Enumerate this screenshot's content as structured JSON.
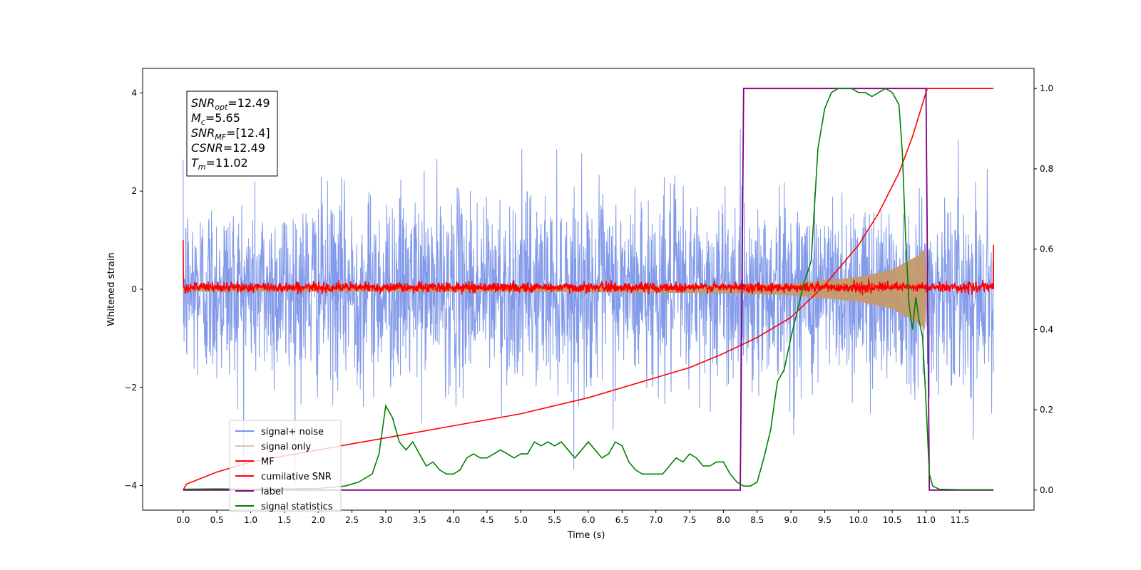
{
  "chart_data": {
    "type": "line",
    "title": "",
    "xlabel": "Time (s)",
    "ylabel": "Whitened strain",
    "xlim": [
      -0.6,
      12.6
    ],
    "ylim": [
      -4.5,
      4.5
    ],
    "y2lim": [
      -0.05,
      1.05
    ],
    "x_ticks": [
      0.0,
      0.5,
      1.0,
      1.5,
      2.0,
      2.5,
      3.0,
      3.5,
      4.0,
      4.5,
      5.0,
      5.5,
      6.0,
      6.5,
      7.0,
      7.5,
      8.0,
      8.5,
      9.0,
      9.5,
      10.0,
      10.5,
      11.0,
      11.5
    ],
    "x_tick_labels": [
      "0.0",
      "0.5",
      "1.0",
      "1.5",
      "2.0",
      "2.5",
      "3.0",
      "3.5",
      "4.0",
      "4.5",
      "5.0",
      "5.5",
      "6.0",
      "6.5",
      "7.0",
      "7.5",
      "8.0",
      "8.5",
      "9.0",
      "9.5",
      "10.0",
      "10.5",
      "11.0",
      "11.5"
    ],
    "y_ticks": [
      -4,
      -2,
      0,
      2,
      4
    ],
    "y_tick_labels": [
      "−4",
      "−2",
      "0",
      "2",
      "4"
    ],
    "y2_ticks": [
      0.0,
      0.2,
      0.4,
      0.6,
      0.8,
      1.0
    ],
    "y2_tick_labels": [
      "0.0",
      "0.2",
      "0.4",
      "0.6",
      "0.8",
      "1.0"
    ],
    "grid": false,
    "legend_position": "lower-left",
    "annotation": [
      {
        "base": "SNR",
        "sub": "opt",
        "value": "=12.49"
      },
      {
        "base": "M",
        "sub": "c",
        "value": "=5.65"
      },
      {
        "base": "SNR",
        "sub": "MF",
        "value": "=[12.4]"
      },
      {
        "base": "CSNR",
        "sub": "",
        "value": "=12.49"
      },
      {
        "base": "T",
        "sub": "m",
        "value": "=11.02"
      }
    ],
    "series": [
      {
        "name": "signal+ noise",
        "axis": "left",
        "color": "#7b95e8",
        "kind": "noise",
        "x_range": [
          0.0,
          12.0
        ],
        "typical_envelope": [
          -1.5,
          1.5
        ],
        "max_abs": 4.0
      },
      {
        "name": "signal only",
        "axis": "left",
        "color": "#c49a6c",
        "kind": "chirp",
        "x_range": [
          0.0,
          11.02
        ],
        "amplitude_points": [
          [
            0.0,
            0.04
          ],
          [
            6.0,
            0.06
          ],
          [
            8.0,
            0.08
          ],
          [
            9.0,
            0.12
          ],
          [
            10.0,
            0.25
          ],
          [
            10.5,
            0.4
          ],
          [
            10.9,
            0.7
          ],
          [
            11.0,
            0.85
          ],
          [
            11.02,
            0.0
          ]
        ]
      },
      {
        "name": "MF",
        "axis": "left",
        "color": "#ff0000",
        "kind": "mf",
        "x_range": [
          0.0,
          12.0
        ],
        "start_value": 1.0,
        "end_value": 0.9,
        "typical_envelope": [
          -0.12,
          0.2
        ]
      },
      {
        "name": "cumilative SNR",
        "axis": "right",
        "color": "#ff0000",
        "x": [
          0.0,
          0.05,
          0.5,
          1.0,
          2.0,
          3.0,
          4.0,
          5.0,
          6.0,
          7.0,
          7.5,
          8.0,
          8.5,
          9.0,
          9.5,
          10.0,
          10.3,
          10.6,
          10.8,
          11.0,
          11.02,
          12.0
        ],
        "values": [
          0.0,
          0.015,
          0.045,
          0.07,
          0.1,
          0.13,
          0.16,
          0.19,
          0.23,
          0.28,
          0.305,
          0.34,
          0.38,
          0.43,
          0.51,
          0.61,
          0.69,
          0.79,
          0.88,
          0.99,
          1.0,
          1.0
        ]
      },
      {
        "name": "label",
        "axis": "right",
        "color": "#800080",
        "x": [
          0.0,
          8.25,
          8.3,
          11.0,
          11.05,
          12.0
        ],
        "values": [
          0.0,
          0.0,
          1.0,
          1.0,
          0.0,
          0.0
        ]
      },
      {
        "name": "signal statistics",
        "axis": "right",
        "color": "#008000",
        "x": [
          0.0,
          0.5,
          1.0,
          1.5,
          2.0,
          2.4,
          2.6,
          2.8,
          2.9,
          3.0,
          3.1,
          3.2,
          3.3,
          3.4,
          3.5,
          3.6,
          3.7,
          3.8,
          3.9,
          4.0,
          4.1,
          4.2,
          4.3,
          4.4,
          4.5,
          4.6,
          4.7,
          4.8,
          4.9,
          5.0,
          5.1,
          5.2,
          5.3,
          5.4,
          5.5,
          5.6,
          5.7,
          5.8,
          5.9,
          6.0,
          6.1,
          6.2,
          6.3,
          6.4,
          6.5,
          6.6,
          6.7,
          6.8,
          6.9,
          7.0,
          7.1,
          7.2,
          7.3,
          7.4,
          7.5,
          7.6,
          7.7,
          7.8,
          7.9,
          8.0,
          8.1,
          8.2,
          8.3,
          8.4,
          8.5,
          8.6,
          8.7,
          8.8,
          8.9,
          9.0,
          9.1,
          9.2,
          9.3,
          9.4,
          9.5,
          9.6,
          9.7,
          9.8,
          9.9,
          10.0,
          10.1,
          10.2,
          10.3,
          10.4,
          10.5,
          10.6,
          10.65,
          10.7,
          10.75,
          10.8,
          10.85,
          10.9,
          10.95,
          11.0,
          11.05,
          11.1,
          11.2,
          11.5,
          12.0
        ],
        "values": [
          0.002,
          0.003,
          0.002,
          0.003,
          0.004,
          0.01,
          0.02,
          0.04,
          0.09,
          0.21,
          0.18,
          0.12,
          0.1,
          0.12,
          0.09,
          0.06,
          0.07,
          0.05,
          0.04,
          0.04,
          0.05,
          0.08,
          0.09,
          0.08,
          0.08,
          0.09,
          0.1,
          0.09,
          0.08,
          0.09,
          0.09,
          0.12,
          0.11,
          0.12,
          0.11,
          0.12,
          0.1,
          0.08,
          0.1,
          0.12,
          0.1,
          0.08,
          0.09,
          0.12,
          0.11,
          0.07,
          0.05,
          0.04,
          0.04,
          0.04,
          0.04,
          0.06,
          0.08,
          0.07,
          0.09,
          0.08,
          0.06,
          0.06,
          0.07,
          0.07,
          0.04,
          0.02,
          0.01,
          0.01,
          0.02,
          0.08,
          0.15,
          0.27,
          0.3,
          0.38,
          0.45,
          0.52,
          0.57,
          0.85,
          0.95,
          0.99,
          1.0,
          1.0,
          1.0,
          0.99,
          0.99,
          0.98,
          0.99,
          1.0,
          0.99,
          0.96,
          0.84,
          0.62,
          0.46,
          0.4,
          0.48,
          0.42,
          0.38,
          0.22,
          0.04,
          0.01,
          0.002,
          0.001,
          0.001
        ]
      }
    ]
  }
}
